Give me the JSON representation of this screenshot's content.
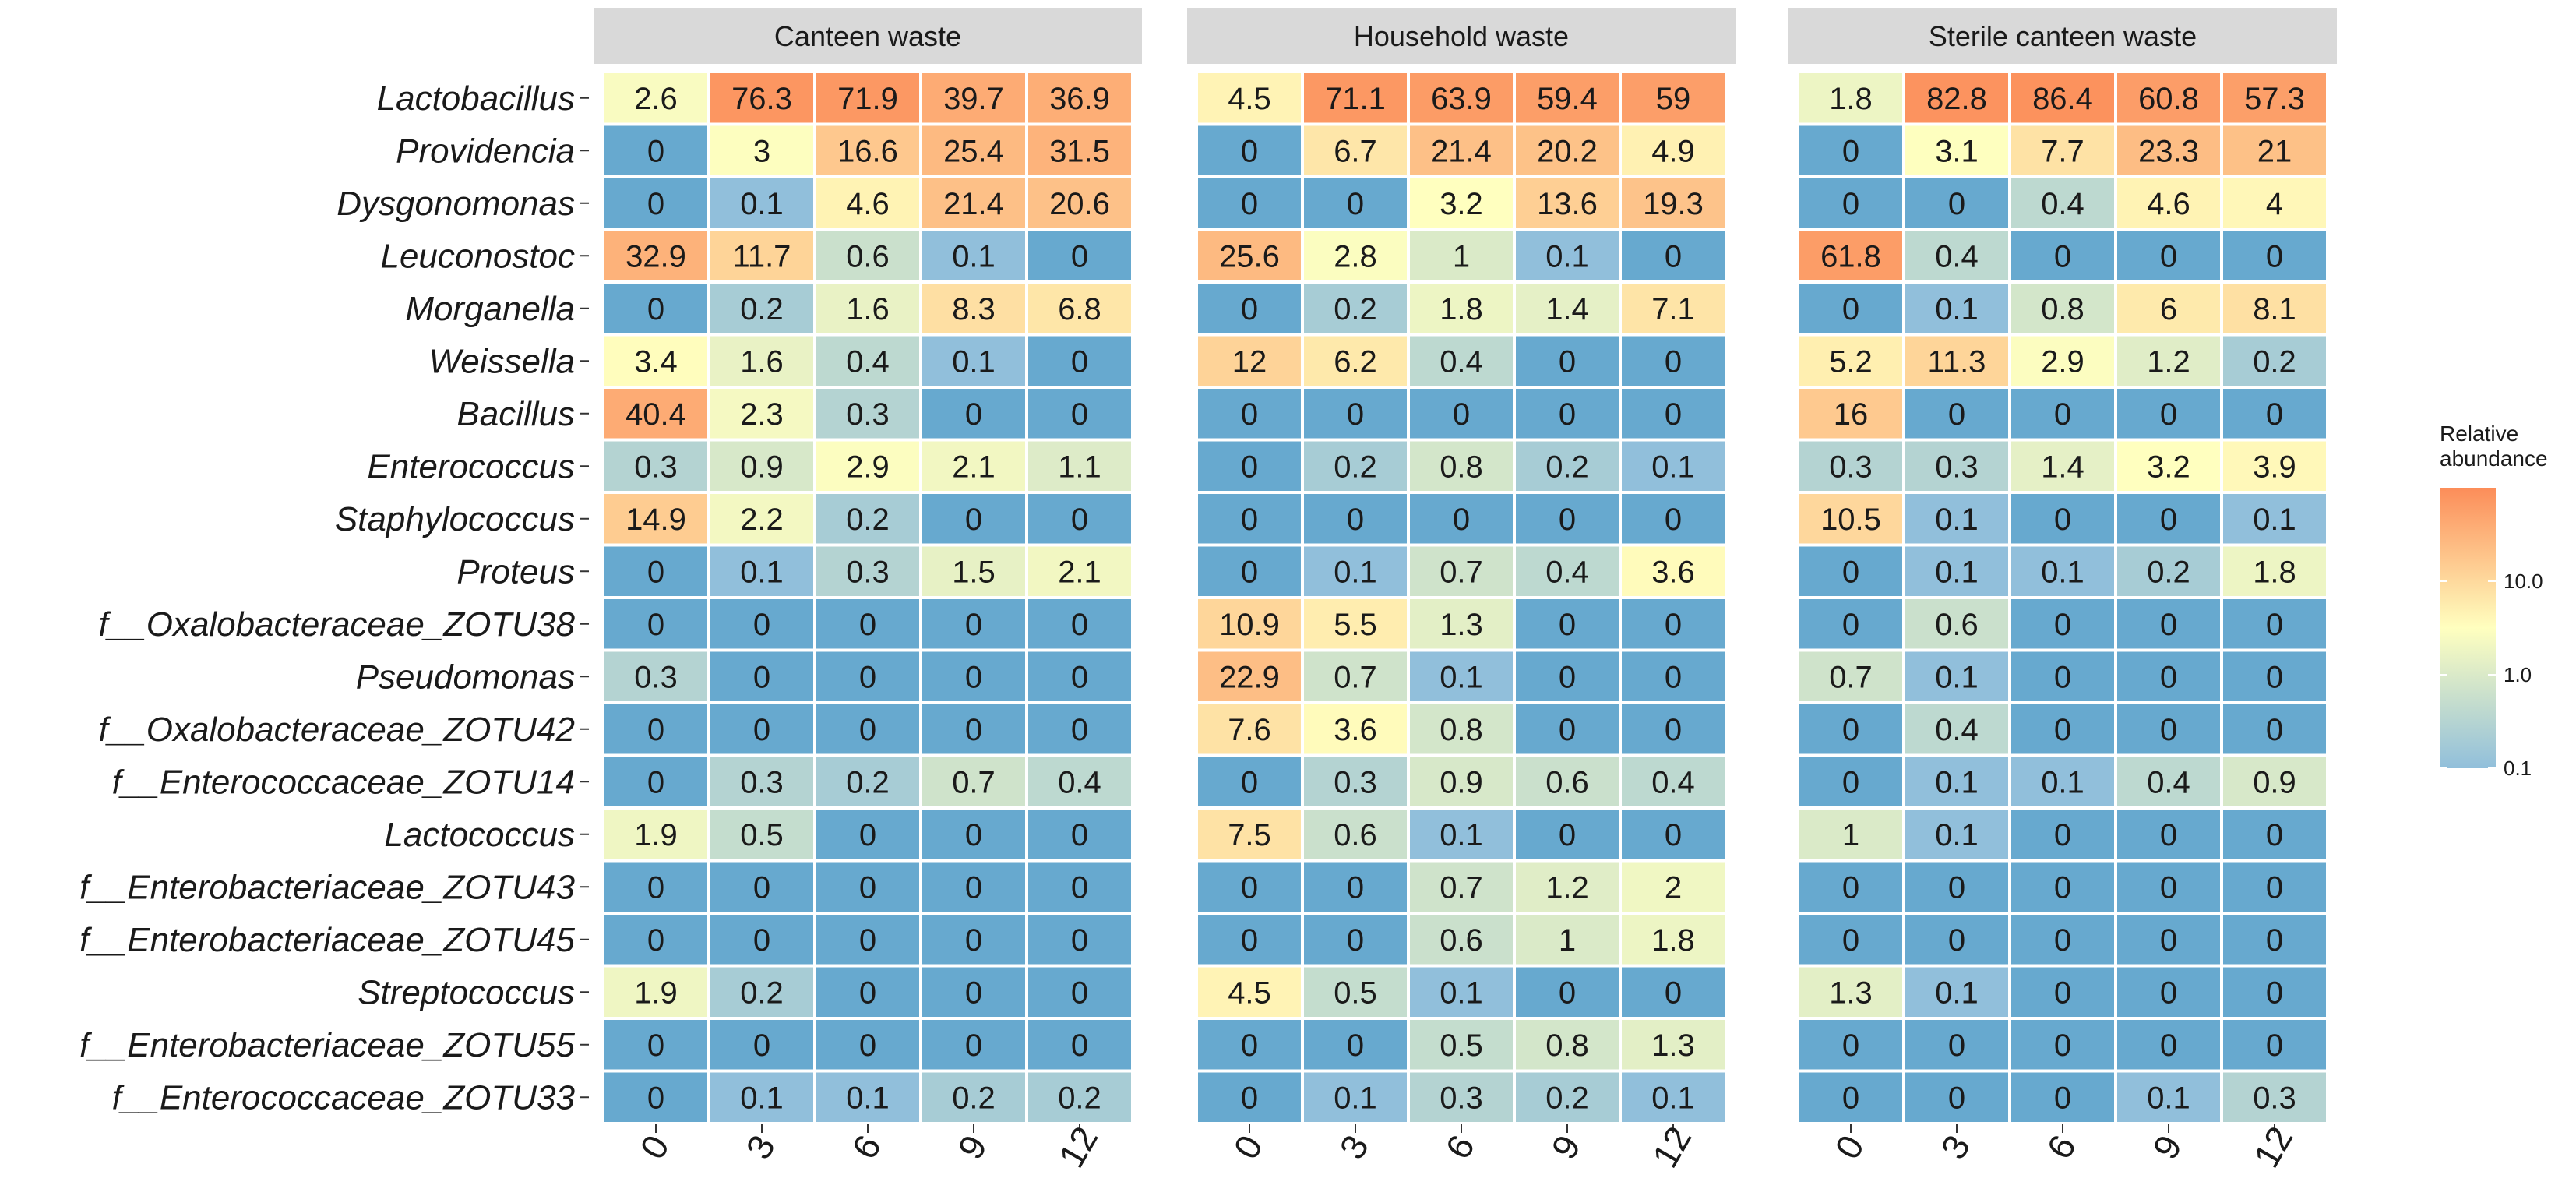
{
  "chart_data": {
    "type": "heatmap",
    "scale": "log10",
    "color_range": [
      0.1,
      100
    ],
    "colors": [
      "#91bfdb",
      "#ffffbf",
      "#fc8d59"
    ],
    "zero_color": "#67a9cf",
    "legend": {
      "title_lines": [
        "Relative",
        "abundance"
      ],
      "ticks": [
        {
          "value": 10,
          "label": "10.0"
        },
        {
          "value": 1,
          "label": "1.0"
        },
        {
          "value": 0.1,
          "label": "0.1"
        }
      ],
      "placement": "right"
    },
    "x": [
      "0",
      "3",
      "6",
      "9",
      "12"
    ],
    "rows": [
      "Lactobacillus",
      "Providencia",
      "Dysgonomonas",
      "Leuconostoc",
      "Morganella",
      "Weissella",
      "Bacillus",
      "Enterococcus",
      "Staphylococcus",
      "Proteus",
      "f__Oxalobacteraceae_ZOTU38",
      "Pseudomonas",
      "f__Oxalobacteraceae_ZOTU42",
      "f__Enterococcaceae_ZOTU14",
      "Lactococcus",
      "f__Enterobacteriaceae_ZOTU43",
      "f__Enterobacteriaceae_ZOTU45",
      "Streptococcus",
      "f__Enterobacteriaceae_ZOTU55",
      "f__Enterococcaceae_ZOTU33"
    ],
    "facets": [
      {
        "name": "Canteen waste",
        "values": [
          [
            2.6,
            76.3,
            71.9,
            39.7,
            36.9
          ],
          [
            0,
            3,
            16.6,
            25.4,
            31.5
          ],
          [
            0,
            0.1,
            4.6,
            21.4,
            20.6
          ],
          [
            32.9,
            11.7,
            0.6,
            0.1,
            0
          ],
          [
            0,
            0.2,
            1.6,
            8.3,
            6.8
          ],
          [
            3.4,
            1.6,
            0.4,
            0.1,
            0
          ],
          [
            40.4,
            2.3,
            0.3,
            0,
            0
          ],
          [
            0.3,
            0.9,
            2.9,
            2.1,
            1.1
          ],
          [
            14.9,
            2.2,
            0.2,
            0,
            0
          ],
          [
            0,
            0.1,
            0.3,
            1.5,
            2.1
          ],
          [
            0,
            0,
            0,
            0,
            0
          ],
          [
            0.3,
            0,
            0,
            0,
            0
          ],
          [
            0,
            0,
            0,
            0,
            0
          ],
          [
            0,
            0.3,
            0.2,
            0.7,
            0.4
          ],
          [
            1.9,
            0.5,
            0,
            0,
            0
          ],
          [
            0,
            0,
            0,
            0,
            0
          ],
          [
            0,
            0,
            0,
            0,
            0
          ],
          [
            1.9,
            0.2,
            0,
            0,
            0
          ],
          [
            0,
            0,
            0,
            0,
            0
          ],
          [
            0,
            0.1,
            0.1,
            0.2,
            0.2
          ]
        ]
      },
      {
        "name": "Household waste",
        "values": [
          [
            4.5,
            71.1,
            63.9,
            59.4,
            59
          ],
          [
            0,
            6.7,
            21.4,
            20.2,
            4.9
          ],
          [
            0,
            0,
            3.2,
            13.6,
            19.3
          ],
          [
            25.6,
            2.8,
            1,
            0.1,
            0
          ],
          [
            0,
            0.2,
            1.8,
            1.4,
            7.1
          ],
          [
            12,
            6.2,
            0.4,
            0,
            0
          ],
          [
            0,
            0,
            0,
            0,
            0
          ],
          [
            0,
            0.2,
            0.8,
            0.2,
            0.1
          ],
          [
            0,
            0,
            0,
            0,
            0
          ],
          [
            0,
            0.1,
            0.7,
            0.4,
            3.6
          ],
          [
            10.9,
            5.5,
            1.3,
            0,
            0
          ],
          [
            22.9,
            0.7,
            0.1,
            0,
            0
          ],
          [
            7.6,
            3.6,
            0.8,
            0,
            0
          ],
          [
            0,
            0.3,
            0.9,
            0.6,
            0.4
          ],
          [
            7.5,
            0.6,
            0.1,
            0,
            0
          ],
          [
            0,
            0,
            0.7,
            1.2,
            2
          ],
          [
            0,
            0,
            0.6,
            1,
            1.8
          ],
          [
            4.5,
            0.5,
            0.1,
            0,
            0
          ],
          [
            0,
            0,
            0.5,
            0.8,
            1.3
          ],
          [
            0,
            0.1,
            0.3,
            0.2,
            0.1
          ]
        ]
      },
      {
        "name": "Sterile canteen waste",
        "values": [
          [
            1.8,
            82.8,
            86.4,
            60.8,
            57.3
          ],
          [
            0,
            3.1,
            7.7,
            23.3,
            21
          ],
          [
            0,
            0,
            0.4,
            4.6,
            4
          ],
          [
            61.8,
            0.4,
            0,
            0,
            0
          ],
          [
            0,
            0.1,
            0.8,
            6,
            8.1
          ],
          [
            5.2,
            11.3,
            2.9,
            1.2,
            0.2
          ],
          [
            16,
            0,
            0,
            0,
            0
          ],
          [
            0.3,
            0.3,
            1.4,
            3.2,
            3.9
          ],
          [
            10.5,
            0.1,
            0,
            0,
            0.1
          ],
          [
            0,
            0.1,
            0.1,
            0.2,
            1.8
          ],
          [
            0,
            0.6,
            0,
            0,
            0
          ],
          [
            0.7,
            0.1,
            0,
            0,
            0
          ],
          [
            0,
            0.4,
            0,
            0,
            0
          ],
          [
            0,
            0.1,
            0.1,
            0.4,
            0.9
          ],
          [
            1,
            0.1,
            0,
            0,
            0
          ],
          [
            0,
            0,
            0,
            0,
            0
          ],
          [
            0,
            0,
            0,
            0,
            0
          ],
          [
            1.3,
            0.1,
            0,
            0,
            0
          ],
          [
            0,
            0,
            0,
            0,
            0
          ],
          [
            0,
            0,
            0,
            0.1,
            0.3
          ]
        ]
      }
    ]
  }
}
